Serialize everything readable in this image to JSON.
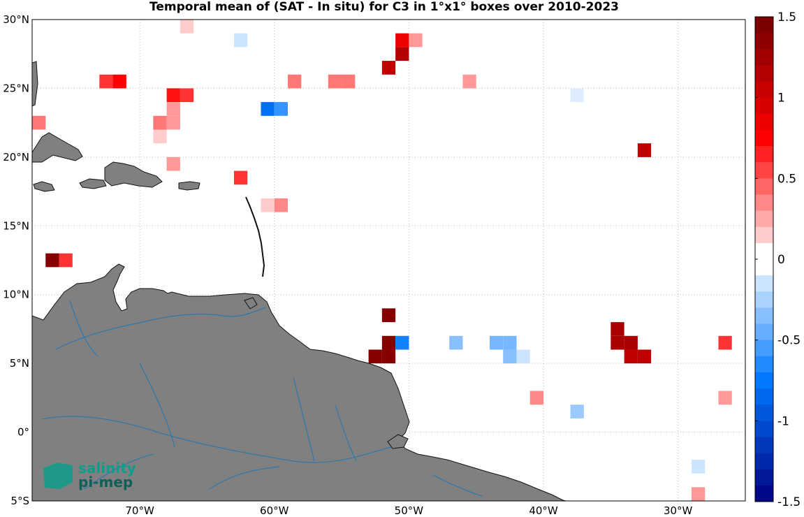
{
  "title": "Temporal mean of (SAT - In situ) for C3 in 1°x1° boxes over 2010-2023",
  "map": {
    "lon_range": [
      -78,
      -25
    ],
    "lat_range": [
      -5,
      30
    ],
    "lat_labels": [
      {
        "lat": 30,
        "text": "30°N"
      },
      {
        "lat": 25,
        "text": "25°N"
      },
      {
        "lat": 20,
        "text": "20°N"
      },
      {
        "lat": 15,
        "text": "15°N"
      },
      {
        "lat": 10,
        "text": "10°N"
      },
      {
        "lat": 5,
        "text": "5°N"
      },
      {
        "lat": 0,
        "text": "0°"
      },
      {
        "lat": -5,
        "text": "5°S"
      }
    ],
    "lon_labels": [
      {
        "lon": -70,
        "text": "70°W"
      },
      {
        "lon": -60,
        "text": "60°W"
      },
      {
        "lon": -50,
        "text": "50°W"
      },
      {
        "lon": -40,
        "text": "40°W"
      },
      {
        "lon": -30,
        "text": "30°W"
      }
    ],
    "land_color": "#808080",
    "river_color": "#1f77b4",
    "grid_style": "dotted"
  },
  "colorbar": {
    "range": [
      -1.5,
      1.5
    ],
    "levels": 30,
    "tick_labels": [
      {
        "value": 1.5,
        "text": "1.5"
      },
      {
        "value": 1,
        "text": "1"
      },
      {
        "value": 0.5,
        "text": "0.5"
      },
      {
        "value": 0,
        "text": "0"
      },
      {
        "value": -0.5,
        "text": "-0.5"
      },
      {
        "value": -1,
        "text": "-1"
      },
      {
        "value": -1.5,
        "text": "-1.5"
      }
    ]
  },
  "logo": {
    "line1": "salinity",
    "line2": "pi-mep"
  },
  "cells": [
    {
      "lon": -67,
      "lat": 29,
      "value": 0.15
    },
    {
      "lon": -63,
      "lat": 28,
      "value": -0.15
    },
    {
      "lon": -51,
      "lat": 28,
      "value": 0.85
    },
    {
      "lon": -50,
      "lat": 28,
      "value": 0.3
    },
    {
      "lon": -51,
      "lat": 27,
      "value": 1.15
    },
    {
      "lon": -52,
      "lat": 26,
      "value": 1.1
    },
    {
      "lon": -73,
      "lat": 25,
      "value": 0.6
    },
    {
      "lon": -72,
      "lat": 25,
      "value": 0.75
    },
    {
      "lon": -59,
      "lat": 25,
      "value": 0.4
    },
    {
      "lon": -56,
      "lat": 25,
      "value": 0.4
    },
    {
      "lon": -55,
      "lat": 25,
      "value": 0.4
    },
    {
      "lon": -46,
      "lat": 25,
      "value": 0.3
    },
    {
      "lon": -68,
      "lat": 24,
      "value": 0.7
    },
    {
      "lon": -67,
      "lat": 24,
      "value": 0.6
    },
    {
      "lon": -38,
      "lat": 24,
      "value": -0.1
    },
    {
      "lon": -68,
      "lat": 23,
      "value": 0.3
    },
    {
      "lon": -61,
      "lat": 23,
      "value": -0.8
    },
    {
      "lon": -60,
      "lat": 23,
      "value": -0.6
    },
    {
      "lon": -78,
      "lat": 22,
      "value": 0.4
    },
    {
      "lon": -69,
      "lat": 22,
      "value": 0.4
    },
    {
      "lon": -68,
      "lat": 22,
      "value": 0.3
    },
    {
      "lon": -69,
      "lat": 21,
      "value": 0.15
    },
    {
      "lon": -33,
      "lat": 20,
      "value": 1.1
    },
    {
      "lon": -68,
      "lat": 19,
      "value": 0.3
    },
    {
      "lon": -63,
      "lat": 18,
      "value": 0.6
    },
    {
      "lon": -61,
      "lat": 16,
      "value": 0.15
    },
    {
      "lon": -60,
      "lat": 16,
      "value": 0.35
    },
    {
      "lon": -77,
      "lat": 12,
      "value": 1.4
    },
    {
      "lon": -76,
      "lat": 12,
      "value": 0.6
    },
    {
      "lon": -52,
      "lat": 8,
      "value": 1.4
    },
    {
      "lon": -35,
      "lat": 7,
      "value": 1.2
    },
    {
      "lon": -52,
      "lat": 6,
      "value": 1.4
    },
    {
      "lon": -51,
      "lat": 6,
      "value": -0.7
    },
    {
      "lon": -47,
      "lat": 6,
      "value": -0.35
    },
    {
      "lon": -44,
      "lat": 6,
      "value": -0.4
    },
    {
      "lon": -43,
      "lat": 6,
      "value": -0.4
    },
    {
      "lon": -35,
      "lat": 6,
      "value": 1.2
    },
    {
      "lon": -34,
      "lat": 6,
      "value": 1.2
    },
    {
      "lon": -27,
      "lat": 6,
      "value": 0.6
    },
    {
      "lon": -53,
      "lat": 5,
      "value": 1.4
    },
    {
      "lon": -52,
      "lat": 5,
      "value": 1.4
    },
    {
      "lon": -43,
      "lat": 5,
      "value": -0.35
    },
    {
      "lon": -42,
      "lat": 5,
      "value": -0.15
    },
    {
      "lon": -34,
      "lat": 5,
      "value": 1.1
    },
    {
      "lon": -33,
      "lat": 5,
      "value": 1.1
    },
    {
      "lon": -41,
      "lat": 2,
      "value": 0.35
    },
    {
      "lon": -27,
      "lat": 2,
      "value": 0.3
    },
    {
      "lon": -38,
      "lat": 1,
      "value": -0.3
    },
    {
      "lon": -29,
      "lat": -3,
      "value": -0.15
    },
    {
      "lon": -29,
      "lat": -5,
      "value": 0.3
    }
  ]
}
